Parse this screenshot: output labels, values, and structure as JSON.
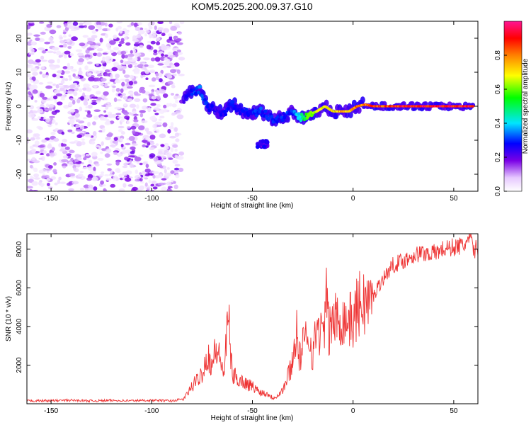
{
  "figure": {
    "title": "KOM5.2025.200.09.37.G10"
  },
  "chart_data": [
    {
      "type": "heatmap",
      "xlabel": "Height of straight line (km)",
      "ylabel": "Frequency (Hz)",
      "xlim": [
        -162,
        62
      ],
      "ylim": [
        -25,
        25
      ],
      "x_ticks": [
        -150,
        -100,
        -50,
        0,
        50
      ],
      "y_ticks": [
        -20,
        -10,
        0,
        10,
        20
      ],
      "colorbar": {
        "label": "Normalized spectral amplitude",
        "range": [
          0,
          1
        ],
        "ticks": [
          0.0,
          0.2,
          0.4,
          0.6,
          0.8
        ],
        "tick_labels": [
          "0.0",
          "0.2",
          "0.4",
          "0.6",
          "0.8"
        ],
        "colormap": [
          "#ffffff",
          "#e6c8ff",
          "#7a00e6",
          "#0000ff",
          "#00e5ff",
          "#00ff00",
          "#ffff00",
          "#ff8000",
          "#ff0000",
          "#ff1493"
        ]
      },
      "noise_region": {
        "x_range": [
          -162,
          -85
        ],
        "freq_range": [
          -25,
          25
        ],
        "amplitude_range": [
          0.03,
          0.2
        ]
      },
      "signal_track": [
        {
          "x": -84,
          "freq": 2.0,
          "amp": 0.25
        },
        {
          "x": -80,
          "freq": 4.5,
          "amp": 0.3
        },
        {
          "x": -76,
          "freq": 5.0,
          "amp": 0.35
        },
        {
          "x": -72,
          "freq": -0.5,
          "amp": 0.3
        },
        {
          "x": -68,
          "freq": -1.0,
          "amp": 0.25
        },
        {
          "x": -64,
          "freq": -2.0,
          "amp": 0.28
        },
        {
          "x": -60,
          "freq": 1.0,
          "amp": 0.3
        },
        {
          "x": -56,
          "freq": -1.5,
          "amp": 0.28
        },
        {
          "x": -50,
          "freq": -2.0,
          "amp": 0.3
        },
        {
          "x": -46,
          "freq": -1.5,
          "amp": 0.32
        },
        {
          "x": -42,
          "freq": -3.0,
          "amp": 0.3
        },
        {
          "x": -38,
          "freq": -4.0,
          "amp": 0.3
        },
        {
          "x": -34,
          "freq": -3.0,
          "amp": 0.3
        },
        {
          "x": -30,
          "freq": -1.5,
          "amp": 0.32
        },
        {
          "x": -26,
          "freq": -3.5,
          "amp": 0.45
        },
        {
          "x": -22,
          "freq": -2.5,
          "amp": 0.6
        },
        {
          "x": -18,
          "freq": -1.5,
          "amp": 0.7
        },
        {
          "x": -14,
          "freq": 0.0,
          "amp": 0.7
        },
        {
          "x": -10,
          "freq": -1.5,
          "amp": 0.75
        },
        {
          "x": -6,
          "freq": -1.5,
          "amp": 0.8
        },
        {
          "x": -2,
          "freq": -1.5,
          "amp": 0.8
        },
        {
          "x": 2,
          "freq": 0.0,
          "amp": 0.85
        },
        {
          "x": 6,
          "freq": 0.5,
          "amp": 0.85
        },
        {
          "x": 10,
          "freq": 0.0,
          "amp": 0.88
        },
        {
          "x": 20,
          "freq": 0.0,
          "amp": 0.92
        },
        {
          "x": 30,
          "freq": 0.0,
          "amp": 0.95
        },
        {
          "x": 40,
          "freq": 0.0,
          "amp": 0.95
        },
        {
          "x": 50,
          "freq": 0.0,
          "amp": 0.95
        },
        {
          "x": 60,
          "freq": 0.0,
          "amp": 0.95
        }
      ],
      "blob": {
        "x": -45,
        "freq": -11,
        "amp": 0.25
      }
    },
    {
      "type": "line",
      "xlabel": "Height of straight line (km)",
      "ylabel": "SNR (10 * v/v)",
      "xlim": [
        -162,
        62
      ],
      "ylim": [
        0,
        8800
      ],
      "x_ticks": [
        -150,
        -100,
        -50,
        0,
        50
      ],
      "y_ticks": [
        2000,
        4000,
        6000,
        8000
      ],
      "color": "#ee3333",
      "series": [
        {
          "x": [
            -162,
            -150,
            -140,
            -130,
            -120,
            -110,
            -100,
            -90,
            -84,
            -80,
            -76,
            -72,
            -70,
            -68,
            -64,
            -62,
            -60,
            -56,
            -52,
            -50,
            -46,
            -42,
            -40,
            -38,
            -35,
            -33,
            -32,
            -30,
            -28,
            -27,
            -25,
            -22,
            -20,
            -18,
            -15,
            -13,
            -12,
            -10,
            -8,
            -6,
            -4,
            -2,
            0,
            2,
            4,
            6,
            8,
            10,
            12,
            15,
            20,
            25,
            30,
            35,
            40,
            45,
            50,
            55,
            58,
            60,
            62
          ],
          "y": [
            150,
            160,
            180,
            150,
            170,
            160,
            180,
            150,
            250,
            900,
            1400,
            2500,
            2000,
            2900,
            1600,
            4600,
            1500,
            1200,
            1000,
            900,
            600,
            500,
            300,
            400,
            700,
            1200,
            1600,
            2200,
            4000,
            2200,
            3000,
            3600,
            2500,
            4000,
            3500,
            5500,
            3600,
            4400,
            4300,
            4500,
            4300,
            4400,
            4200,
            5000,
            5200,
            5300,
            5200,
            5500,
            6000,
            6500,
            7200,
            7400,
            7700,
            7800,
            7800,
            8000,
            8100,
            8200,
            8500,
            8000,
            8000
          ]
        }
      ]
    }
  ]
}
